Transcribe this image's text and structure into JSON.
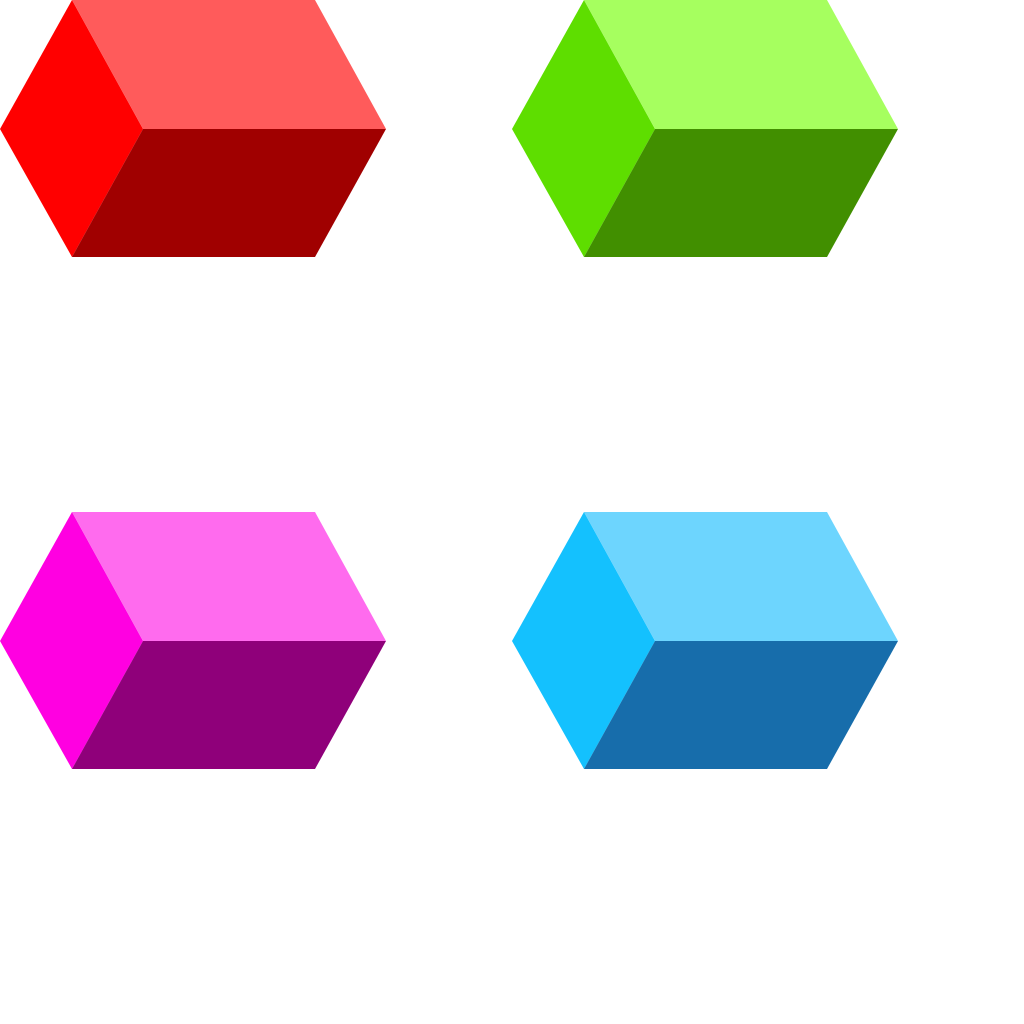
{
  "background": "#ffffff",
  "prisms": [
    {
      "name": "red-prism",
      "colors": {
        "left": "#ff0000",
        "top": "#ff5b5b",
        "front": "#a00000"
      }
    },
    {
      "name": "green-prism",
      "colors": {
        "left": "#5ede00",
        "top": "#a6ff5f",
        "front": "#418f00"
      }
    },
    {
      "name": "magenta-prism",
      "colors": {
        "left": "#ff00e1",
        "top": "#ff6bee",
        "front": "#8f007a"
      }
    },
    {
      "name": "blue-prism",
      "colors": {
        "left": "#14c1fe",
        "top": "#6dd5fe",
        "front": "#176dab"
      }
    }
  ]
}
